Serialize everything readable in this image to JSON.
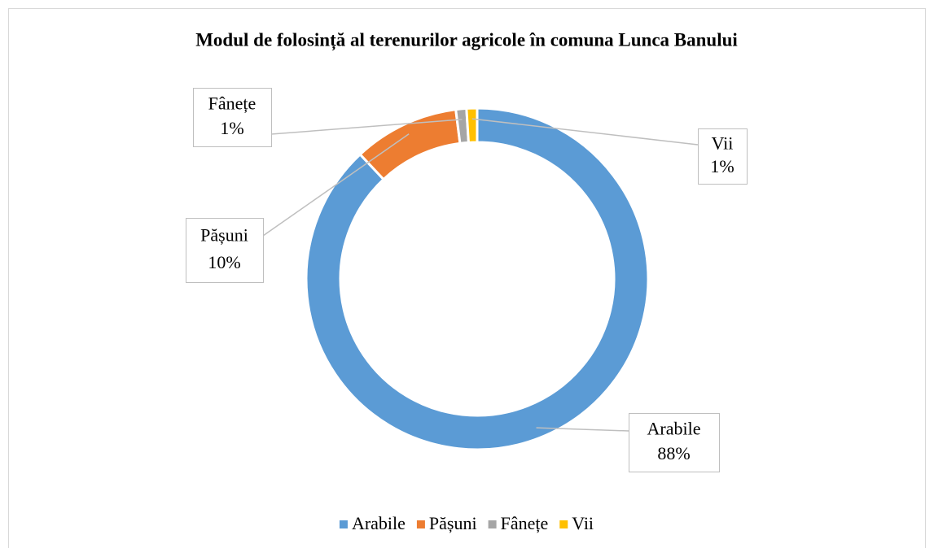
{
  "chart_data": {
    "type": "donut",
    "title": "Modul de folosință al terenurilor agricole în comuna Lunca Banului",
    "categories": [
      "Arabile",
      "Pășuni",
      "Fânețe",
      "Vii"
    ],
    "values": [
      88,
      10,
      1,
      1
    ],
    "value_labels": [
      "88%",
      "10%",
      "1%",
      "1%"
    ],
    "colors": [
      "#5b9bd5",
      "#ed7d31",
      "#a5a5a5",
      "#ffc000"
    ],
    "legend": "bottom"
  }
}
